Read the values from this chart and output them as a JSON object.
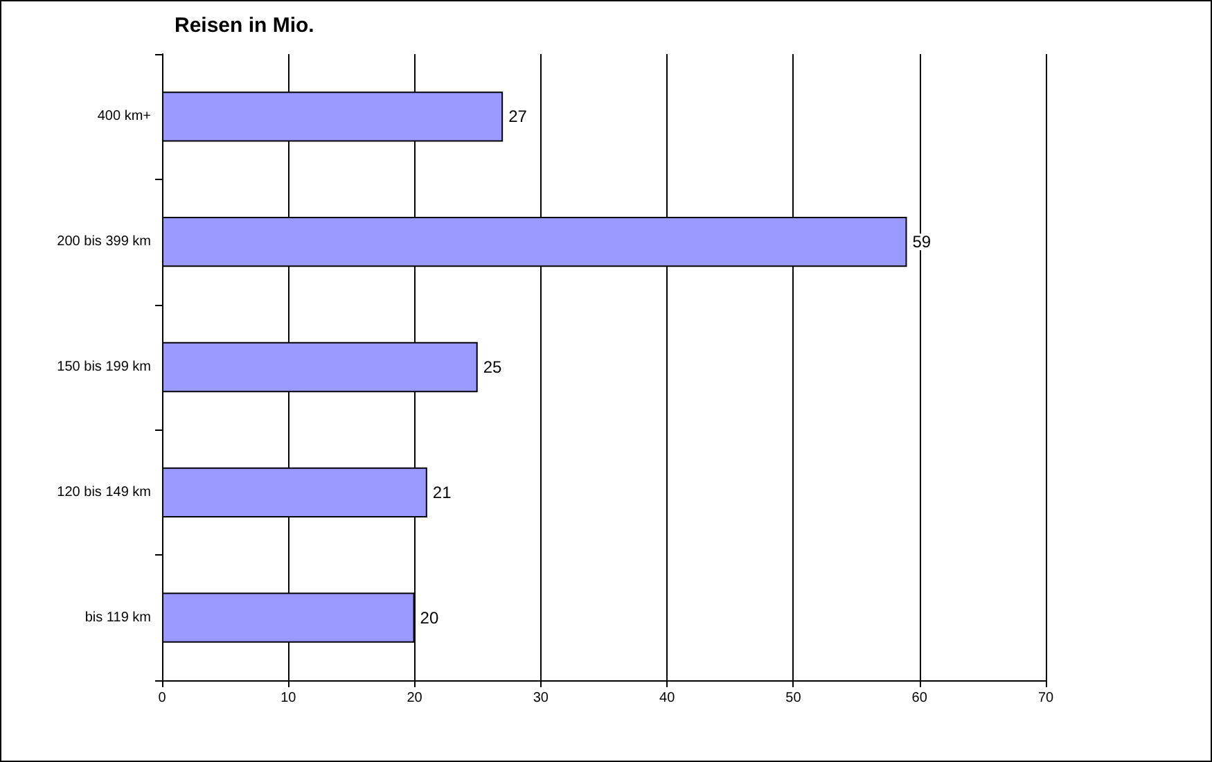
{
  "chart_data": {
    "type": "bar",
    "orientation": "horizontal",
    "title": "Reisen in Mio.",
    "categories": [
      "400 km+",
      "200 bis 399 km",
      "150 bis 199 km",
      "120 bis 149 km",
      "bis 119 km"
    ],
    "values": [
      27,
      59,
      25,
      21,
      20
    ],
    "color": "#9999ff",
    "xlim": [
      0,
      70
    ],
    "xticks": [
      0,
      10,
      20,
      30,
      40,
      50,
      60,
      70
    ],
    "grid": "x",
    "data_labels": true
  }
}
